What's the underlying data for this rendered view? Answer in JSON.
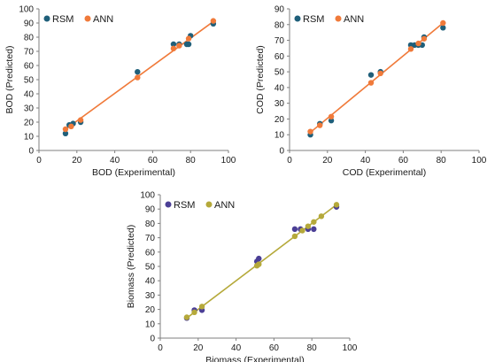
{
  "chart_data": [
    {
      "type": "scatter",
      "xlabel": "BOD (Experimental)",
      "ylabel": "BOD (Predicted)",
      "xlim": [
        0,
        100
      ],
      "ylim": [
        0,
        100
      ],
      "xticks": [
        "0",
        "20",
        "40",
        "60",
        "80",
        "100"
      ],
      "yticks": [
        "0",
        "10",
        "20",
        "30",
        "40",
        "50",
        "60",
        "70",
        "80",
        "90",
        "100"
      ],
      "legend_position": "top-left",
      "grid": false,
      "series": [
        {
          "name": "RSM",
          "color": "#1f5f7a",
          "points": [
            [
              14,
              12
            ],
            [
              16,
              18
            ],
            [
              18,
              19
            ],
            [
              22,
              20
            ],
            [
              52,
              55.5
            ],
            [
              71,
              75
            ],
            [
              74,
              75
            ],
            [
              78,
              75
            ],
            [
              79,
              75
            ],
            [
              80,
              81
            ],
            [
              92,
              89.5
            ]
          ]
        },
        {
          "name": "ANN",
          "color": "#f07a3a",
          "points": [
            [
              14,
              15
            ],
            [
              17,
              17
            ],
            [
              22,
              21.5
            ],
            [
              52,
              51.5
            ],
            [
              71,
              72
            ],
            [
              74,
              74
            ],
            [
              79,
              79
            ],
            [
              92,
              91.5
            ]
          ],
          "fit": [
            [
              13,
              14
            ],
            [
              93,
              92
            ]
          ]
        }
      ]
    },
    {
      "type": "scatter",
      "xlabel": "COD (Experimental)",
      "ylabel": "COD (Predicted)",
      "xlim": [
        0,
        100
      ],
      "ylim": [
        0,
        90
      ],
      "xticks": [
        "0",
        "20",
        "40",
        "60",
        "80",
        "100"
      ],
      "yticks": [
        "0",
        "10",
        "20",
        "30",
        "40",
        "50",
        "60",
        "70",
        "80",
        "90"
      ],
      "legend_position": "top-left",
      "grid": false,
      "series": [
        {
          "name": "RSM",
          "color": "#1f5f7a",
          "points": [
            [
              11,
              10
            ],
            [
              16,
              17
            ],
            [
              22,
              19
            ],
            [
              43,
              48
            ],
            [
              48,
              50
            ],
            [
              64,
              67
            ],
            [
              66,
              67
            ],
            [
              68,
              67
            ],
            [
              70,
              67
            ],
            [
              71,
              72
            ],
            [
              81,
              78
            ]
          ]
        },
        {
          "name": "ANN",
          "color": "#f07a3a",
          "points": [
            [
              11,
              12
            ],
            [
              16,
              16
            ],
            [
              22,
              21.5
            ],
            [
              43,
              43
            ],
            [
              48,
              49
            ],
            [
              64,
              64.5
            ],
            [
              68,
              68
            ],
            [
              71,
              71
            ],
            [
              81,
              81
            ]
          ],
          "fit": [
            [
              11,
              11.5
            ],
            [
              81,
              81
            ]
          ]
        }
      ]
    },
    {
      "type": "scatter",
      "xlabel": "Biomass (Experimental)",
      "ylabel": "Biomass (Predicted)",
      "xlim": [
        0,
        100
      ],
      "ylim": [
        0,
        100
      ],
      "xticks": [
        "0",
        "20",
        "40",
        "60",
        "80",
        "100"
      ],
      "yticks": [
        "0",
        "10",
        "20",
        "30",
        "40",
        "50",
        "60",
        "70",
        "80",
        "90",
        "100"
      ],
      "legend_position": "top-left",
      "grid": false,
      "series": [
        {
          "name": "RSM",
          "color": "#4b3f96",
          "points": [
            [
              14,
              14
            ],
            [
              18,
              19.5
            ],
            [
              22,
              19.5
            ],
            [
              51,
              53.5
            ],
            [
              52,
              55.5
            ],
            [
              71,
              76
            ],
            [
              74,
              76
            ],
            [
              78,
              76
            ],
            [
              81,
              76
            ],
            [
              93,
              91.5
            ]
          ]
        },
        {
          "name": "ANN",
          "color": "#b5a93a",
          "points": [
            [
              14,
              14.5
            ],
            [
              18,
              18
            ],
            [
              22,
              22
            ],
            [
              51,
              50.5
            ],
            [
              52,
              51.5
            ],
            [
              71,
              71
            ],
            [
              75,
              75
            ],
            [
              78,
              78
            ],
            [
              81,
              81
            ],
            [
              85,
              85
            ],
            [
              93,
              93
            ]
          ],
          "fit": [
            [
              13,
              13
            ],
            [
              93,
              93
            ]
          ]
        }
      ]
    }
  ]
}
